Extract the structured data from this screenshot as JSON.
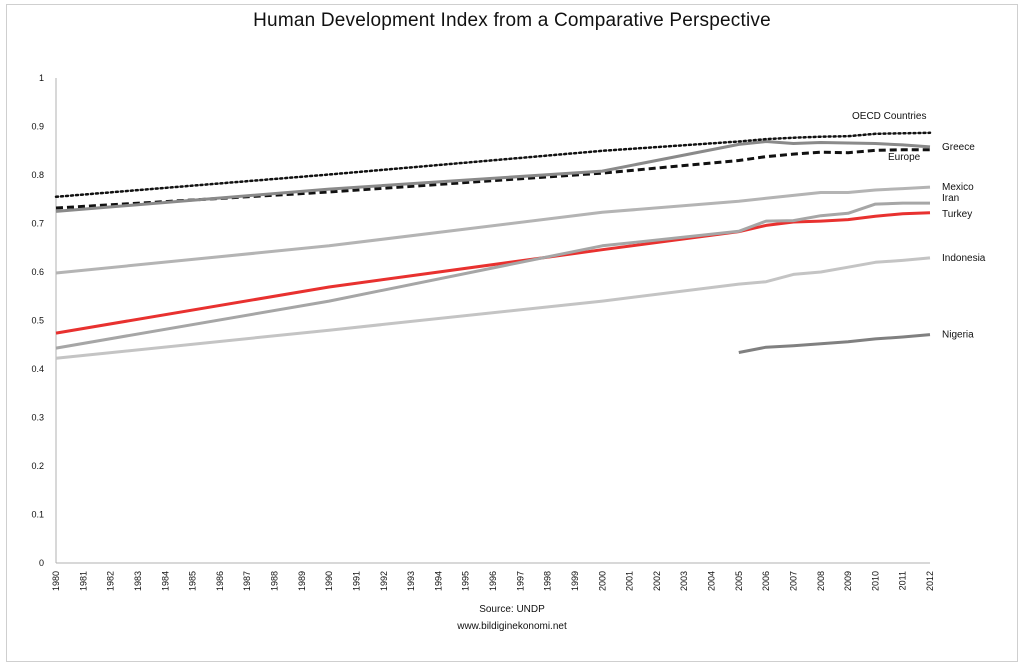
{
  "chart_data": {
    "type": "line",
    "title": "Human Development Index from a Comparative Perspective",
    "source_lines": [
      "Source: UNDP",
      "www.bildiginekonomi.net"
    ],
    "x": [
      1980,
      1981,
      1982,
      1983,
      1984,
      1985,
      1986,
      1987,
      1988,
      1989,
      1990,
      1991,
      1992,
      1993,
      1994,
      1995,
      1996,
      1997,
      1998,
      1999,
      2000,
      2001,
      2002,
      2003,
      2004,
      2005,
      2006,
      2007,
      2008,
      2009,
      2010,
      2011,
      2012
    ],
    "x_tick_labels": [
      "1980",
      "1981",
      "1982",
      "1983",
      "1984",
      "1985",
      "1986",
      "1987",
      "1988",
      "1989",
      "1990",
      "1991",
      "1992",
      "1993",
      "1994",
      "1995",
      "1996",
      "1997",
      "1998",
      "1999",
      "2000",
      "2001",
      "2002",
      "2003",
      "2004",
      "2005",
      "2006",
      "2007",
      "2008",
      "2009",
      "2010",
      "2011",
      "2012"
    ],
    "y_tick_labels": [
      "0",
      "0.1",
      "0.2",
      "0.3",
      "0.4",
      "0.5",
      "0.6",
      "0.7",
      "0.8",
      "0.9",
      "1"
    ],
    "ylim": [
      0,
      1
    ],
    "grid": false,
    "legend": "direct labels at line ends",
    "series": [
      {
        "name": "OECD Countries",
        "color": "#111111",
        "style": "dotted",
        "points": [
          [
            1980,
            0.755
          ],
          [
            1990,
            0.801
          ],
          [
            2000,
            0.85
          ],
          [
            2005,
            0.869
          ],
          [
            2006,
            0.874
          ],
          [
            2007,
            0.877
          ],
          [
            2008,
            0.879
          ],
          [
            2009,
            0.88
          ],
          [
            2010,
            0.885
          ],
          [
            2011,
            0.886
          ],
          [
            2012,
            0.887
          ]
        ]
      },
      {
        "name": "Greece",
        "color": "#8a8a8a",
        "style": "solid",
        "points": [
          [
            1980,
            0.725
          ],
          [
            1990,
            0.771
          ],
          [
            2000,
            0.808
          ],
          [
            2005,
            0.863
          ],
          [
            2006,
            0.869
          ],
          [
            2007,
            0.865
          ],
          [
            2008,
            0.867
          ],
          [
            2009,
            0.866
          ],
          [
            2010,
            0.865
          ],
          [
            2011,
            0.862
          ],
          [
            2012,
            0.858
          ]
        ]
      },
      {
        "name": "Europe",
        "color": "#111111",
        "style": "dashed",
        "points": [
          [
            1980,
            0.732
          ],
          [
            1990,
            0.765
          ],
          [
            2000,
            0.804
          ],
          [
            2005,
            0.83
          ],
          [
            2006,
            0.838
          ],
          [
            2007,
            0.843
          ],
          [
            2008,
            0.847
          ],
          [
            2009,
            0.846
          ],
          [
            2010,
            0.851
          ],
          [
            2011,
            0.852
          ],
          [
            2012,
            0.852
          ]
        ]
      },
      {
        "name": "Mexico",
        "color": "#b4b4b4",
        "style": "solid",
        "points": [
          [
            1980,
            0.598
          ],
          [
            1990,
            0.654
          ],
          [
            2000,
            0.723
          ],
          [
            2005,
            0.746
          ],
          [
            2006,
            0.752
          ],
          [
            2007,
            0.758
          ],
          [
            2008,
            0.764
          ],
          [
            2009,
            0.764
          ],
          [
            2010,
            0.769
          ],
          [
            2011,
            0.772
          ],
          [
            2012,
            0.775
          ]
        ]
      },
      {
        "name": "Iran",
        "color": "#a6a6a6",
        "style": "solid",
        "points": [
          [
            1980,
            0.443
          ],
          [
            1990,
            0.54
          ],
          [
            2000,
            0.654
          ],
          [
            2005,
            0.684
          ],
          [
            2006,
            0.705
          ],
          [
            2007,
            0.706
          ],
          [
            2008,
            0.716
          ],
          [
            2009,
            0.721
          ],
          [
            2010,
            0.74
          ],
          [
            2011,
            0.742
          ],
          [
            2012,
            0.742
          ]
        ]
      },
      {
        "name": "Turkey",
        "color": "#e8312f",
        "style": "solid",
        "points": [
          [
            1980,
            0.474
          ],
          [
            1990,
            0.569
          ],
          [
            2000,
            0.646
          ],
          [
            2005,
            0.683
          ],
          [
            2006,
            0.696
          ],
          [
            2007,
            0.703
          ],
          [
            2008,
            0.705
          ],
          [
            2009,
            0.708
          ],
          [
            2010,
            0.715
          ],
          [
            2011,
            0.72
          ],
          [
            2012,
            0.722
          ]
        ]
      },
      {
        "name": "Indonesia",
        "color": "#c4c4c4",
        "style": "solid",
        "points": [
          [
            1980,
            0.422
          ],
          [
            1990,
            0.48
          ],
          [
            2000,
            0.54
          ],
          [
            2005,
            0.575
          ],
          [
            2006,
            0.58
          ],
          [
            2007,
            0.595
          ],
          [
            2008,
            0.6
          ],
          [
            2009,
            0.61
          ],
          [
            2010,
            0.62
          ],
          [
            2011,
            0.624
          ],
          [
            2012,
            0.629
          ]
        ]
      },
      {
        "name": "Nigeria",
        "color": "#808080",
        "style": "solid",
        "points": [
          [
            2005,
            0.434
          ],
          [
            2006,
            0.445
          ],
          [
            2007,
            0.448
          ],
          [
            2008,
            0.452
          ],
          [
            2009,
            0.456
          ],
          [
            2010,
            0.462
          ],
          [
            2011,
            0.466
          ],
          [
            2012,
            0.471
          ]
        ]
      }
    ]
  }
}
